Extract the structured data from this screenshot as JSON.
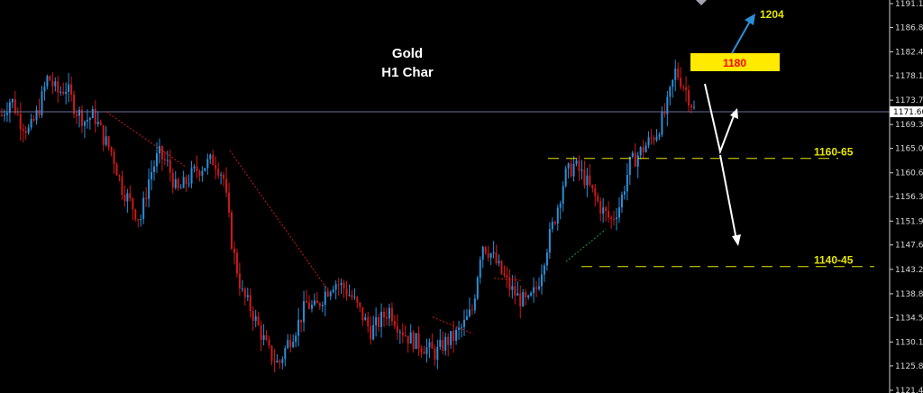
{
  "chart_data": {
    "type": "candlestick",
    "title": "Gold",
    "subtitle": "H1 Char",
    "ylim": [
      1121.4,
      1191.1
    ],
    "y_ticks": [
      1191.1,
      1186.8,
      1182.4,
      1178.1,
      1173.7,
      1169.3,
      1165.0,
      1160.6,
      1156.3,
      1151.9,
      1147.6,
      1143.2,
      1138.8,
      1134.5,
      1130.1,
      1125.8,
      1121.4
    ],
    "current_price": 1171.6,
    "levels": [
      {
        "label": "1160-65",
        "value": 1163.2
      },
      {
        "label": "1140-45",
        "value": 1143.7
      }
    ],
    "targets": [
      {
        "label": "1204",
        "value": 1204
      },
      {
        "label": "1180",
        "value": 1180
      }
    ],
    "price_path": [
      1171,
      1174,
      1170,
      1168,
      1172,
      1178,
      1175,
      1176,
      1172,
      1170,
      1171,
      1167,
      1164,
      1158,
      1155,
      1152,
      1160,
      1164,
      1162,
      1157,
      1159,
      1161,
      1162,
      1163,
      1160,
      1147,
      1139,
      1136,
      1132,
      1128,
      1126,
      1130,
      1133,
      1137,
      1136,
      1139,
      1141,
      1140,
      1138,
      1135,
      1132,
      1134,
      1136,
      1133,
      1131,
      1130,
      1129,
      1128,
      1130,
      1131,
      1133,
      1136,
      1148,
      1146,
      1143,
      1140,
      1138,
      1137,
      1140,
      1147,
      1153,
      1160,
      1162,
      1160,
      1157,
      1154,
      1152,
      1155,
      1162,
      1164,
      1166,
      1168,
      1172,
      1179,
      1176,
      1172
    ],
    "colors": {
      "up": "#2b8fd8",
      "down": "#d01818",
      "background": "#000000",
      "level_line": "#e6e600",
      "price_line": "#6a6f9a",
      "target_box": "#ffea00",
      "target_text": "#ff0000",
      "arrow_up": "#2b8fd8",
      "arrow_path": "#ffffff"
    }
  }
}
